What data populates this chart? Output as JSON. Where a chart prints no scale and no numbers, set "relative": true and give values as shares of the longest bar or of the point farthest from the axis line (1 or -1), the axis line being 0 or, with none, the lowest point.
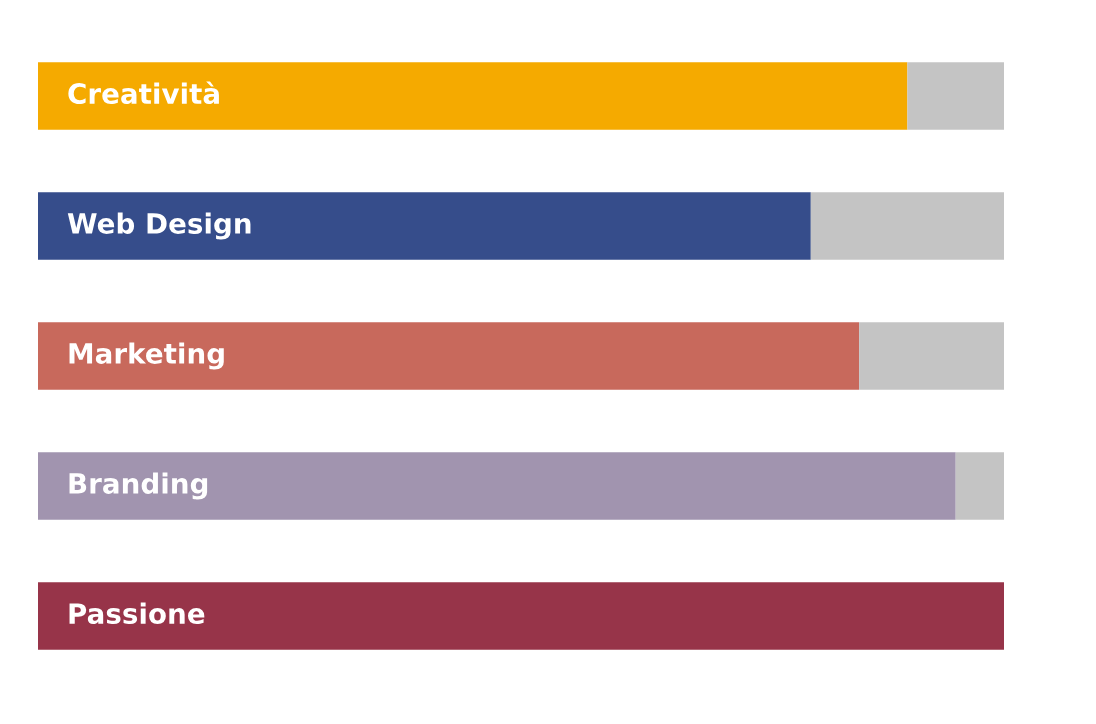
{
  "chart_data": {
    "type": "bar",
    "orientation": "horizontal",
    "stacked": true,
    "relative": true,
    "categories": [
      "Creatività",
      "Web Design",
      "Marketing",
      "Branding",
      "Passione"
    ],
    "series": [
      {
        "colors": [
          "#f5aa00",
          "#364d8b",
          "#c8695c",
          "#a194af",
          "#973449"
        ],
        "values": [
          0.9,
          0.8,
          0.85,
          0.95,
          1
        ]
      },
      {
        "color": "#c4c4c4",
        "values": [
          0.1,
          0.2,
          0.15,
          0.05,
          0
        ]
      }
    ]
  }
}
